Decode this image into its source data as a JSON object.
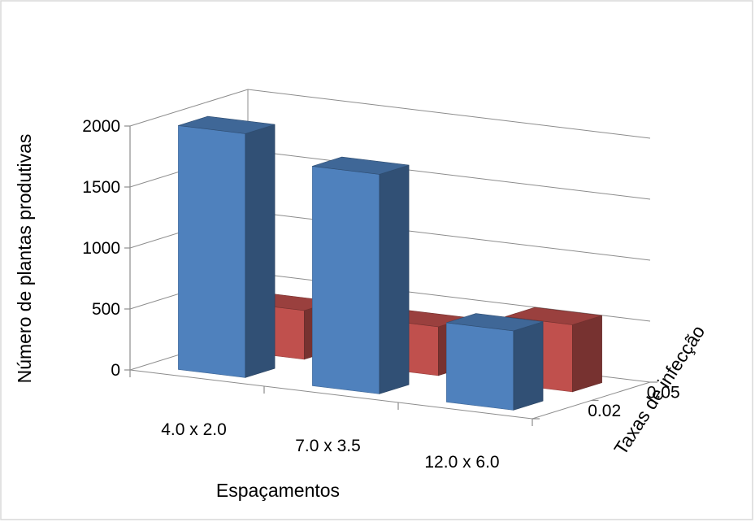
{
  "chart_data": {
    "type": "bar",
    "style": "3d-column",
    "categories": [
      "4.0 x 2.0",
      "7.0 x 3.5",
      "12.0 x 6.0"
    ],
    "depth_categories": [
      "0.02",
      "0.05"
    ],
    "series": [
      {
        "name": "0.02",
        "color": "#4F81BD",
        "values": [
          2000,
          1800,
          650
        ]
      },
      {
        "name": "0.05",
        "color": "#C0504D",
        "values": [
          400,
          400,
          550
        ]
      }
    ],
    "ylim": [
      0,
      2000
    ],
    "yticks": [
      "0",
      "500",
      "1000",
      "1500",
      "2000"
    ],
    "xlabel": "Espaçamentos",
    "ylabel": "Número de plantas produtivas",
    "zlabel": "Taxas de infecção",
    "grid": true,
    "legend": "none"
  }
}
